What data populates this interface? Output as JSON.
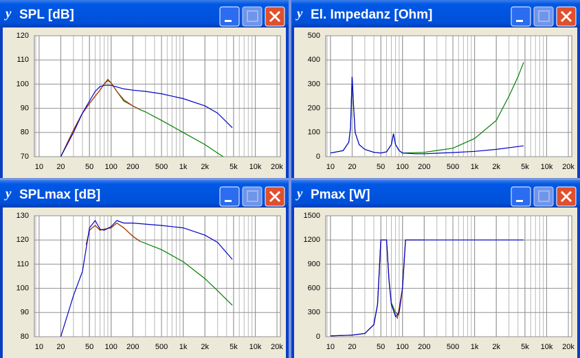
{
  "chart_data": [
    {
      "type": "line",
      "title": "SPL [dB]",
      "xscale": "log",
      "grid": true,
      "xlim": [
        8.6,
        22300
      ],
      "xticks": [
        10,
        20,
        50,
        100,
        200,
        500,
        {
          "value": 1000,
          "label": "1k"
        },
        {
          "value": 2000,
          "label": "2k"
        },
        {
          "value": 5000,
          "label": "5k"
        },
        {
          "value": 10000,
          "label": "10k"
        },
        {
          "value": 20000,
          "label": "20k"
        }
      ],
      "ylim": [
        70,
        120
      ],
      "yticks": [
        70,
        80,
        90,
        100,
        110,
        120
      ],
      "series": [
        {
          "color": "#008000",
          "x": [
            20,
            30,
            40,
            50,
            60,
            70,
            80,
            90,
            100,
            120,
            150,
            200,
            250,
            300,
            500,
            1000,
            2000,
            3000,
            3600
          ],
          "values": [
            70,
            81,
            88,
            92,
            95,
            97.5,
            100,
            101.5,
            100.5,
            97,
            93,
            91,
            89.5,
            88.5,
            85,
            80,
            75,
            71.5,
            70
          ]
        },
        {
          "color": "#b03000",
          "x": [
            20,
            30,
            40,
            50,
            60,
            70,
            80,
            90,
            100,
            120,
            150,
            200,
            250
          ],
          "values": [
            70,
            81,
            88,
            92,
            95,
            97.5,
            100,
            102,
            100.5,
            97,
            93.5,
            91,
            89.5
          ]
        },
        {
          "color": "#0000cc",
          "x": [
            20,
            30,
            40,
            50,
            60,
            70,
            80,
            100,
            150,
            200,
            300,
            500,
            1000,
            2000,
            3000,
            4800
          ],
          "values": [
            70,
            80,
            88,
            93,
            97,
            99,
            99.5,
            99.5,
            98,
            97.5,
            97,
            96,
            94,
            91,
            88,
            82
          ]
        }
      ]
    },
    {
      "type": "line",
      "title": "El. Impedanz [Ohm]",
      "xscale": "log",
      "grid": true,
      "xlim": [
        8.6,
        22300
      ],
      "xticks": [
        10,
        20,
        50,
        100,
        200,
        500,
        {
          "value": 1000,
          "label": "1k"
        },
        {
          "value": 2000,
          "label": "2k"
        },
        {
          "value": 5000,
          "label": "5k"
        },
        {
          "value": 10000,
          "label": "10k"
        },
        {
          "value": 20000,
          "label": "20k"
        }
      ],
      "ylim": [
        0,
        500
      ],
      "yticks": [
        0,
        100,
        200,
        300,
        400,
        500
      ],
      "series": [
        {
          "color": "#008000",
          "x": [
            10,
            15,
            18,
            19,
            20,
            21,
            22,
            25,
            30,
            40,
            50,
            60,
            70,
            75,
            80,
            90,
            100,
            200,
            500,
            1000,
            2000,
            3000,
            4000,
            4800
          ],
          "values": [
            15,
            25,
            60,
            120,
            330,
            200,
            100,
            50,
            30,
            18,
            15,
            20,
            50,
            95,
            50,
            25,
            15,
            18,
            35,
            75,
            150,
            250,
            330,
            390
          ]
        },
        {
          "color": "#0000cc",
          "x": [
            10,
            15,
            18,
            19,
            20,
            21,
            22,
            25,
            30,
            40,
            50,
            60,
            70,
            75,
            80,
            90,
            100,
            150,
            200,
            500,
            1000,
            2000,
            4800
          ],
          "values": [
            15,
            25,
            60,
            120,
            330,
            200,
            100,
            50,
            30,
            18,
            15,
            20,
            50,
            95,
            50,
            25,
            15,
            12,
            12,
            17,
            22,
            30,
            45
          ]
        }
      ]
    },
    {
      "type": "line",
      "title": "SPLmax [dB]",
      "xscale": "log",
      "grid": true,
      "xlim": [
        8.6,
        22300
      ],
      "xticks": [
        10,
        20,
        50,
        100,
        200,
        500,
        {
          "value": 1000,
          "label": "1k"
        },
        {
          "value": 2000,
          "label": "2k"
        },
        {
          "value": 5000,
          "label": "5k"
        },
        {
          "value": 10000,
          "label": "10k"
        },
        {
          "value": 20000,
          "label": "20k"
        }
      ],
      "ylim": [
        80,
        130
      ],
      "yticks": [
        80,
        90,
        100,
        110,
        120,
        130
      ],
      "series": [
        {
          "color": "#008000",
          "x": [
            45,
            50,
            60,
            70,
            80,
            100,
            120,
            150,
            200,
            250,
            500,
            1000,
            2000,
            3000,
            4800
          ],
          "values": [
            118,
            124,
            126,
            124,
            124.5,
            125,
            127,
            125,
            121.5,
            119.5,
            116,
            111,
            104,
            99,
            93
          ]
        },
        {
          "color": "#b03000",
          "x": [
            45,
            50,
            60,
            70,
            80,
            100,
            120,
            150,
            200,
            250
          ],
          "values": [
            118,
            124,
            126,
            124,
            124.5,
            125,
            127,
            125,
            121.5,
            119.5
          ]
        },
        {
          "color": "#0000cc",
          "x": [
            20,
            30,
            40,
            50,
            60,
            70,
            80,
            100,
            120,
            150,
            200,
            500,
            1000,
            2000,
            3000,
            4800
          ],
          "values": [
            80,
            97,
            107,
            125,
            128,
            124.5,
            124,
            125.5,
            128,
            127,
            127,
            126,
            125,
            122,
            119,
            112
          ]
        }
      ]
    },
    {
      "type": "line",
      "title": "Pmax [W]",
      "xscale": "log",
      "grid": true,
      "xlim": [
        8.6,
        22300
      ],
      "xticks": [
        10,
        20,
        50,
        100,
        200,
        500,
        {
          "value": 1000,
          "label": "1k"
        },
        {
          "value": 2000,
          "label": "2k"
        },
        {
          "value": 5000,
          "label": "5k"
        },
        {
          "value": 10000,
          "label": "10k"
        },
        {
          "value": 20000,
          "label": "20k"
        }
      ],
      "ylim": [
        0,
        1500
      ],
      "yticks": [
        0,
        300,
        600,
        900,
        1200,
        1500
      ],
      "series": [
        {
          "color": "#008000",
          "x": [
            10,
            20,
            30,
            40,
            45,
            50,
            60,
            65,
            70,
            80,
            88,
            100,
            110,
            200
          ],
          "values": [
            10,
            20,
            40,
            150,
            400,
            1200,
            1200,
            700,
            420,
            300,
            270,
            600,
            1200,
            1200
          ]
        },
        {
          "color": "#b03000",
          "x": [
            10,
            20,
            30,
            40,
            45,
            50,
            60,
            65,
            70,
            80,
            85,
            100,
            110,
            200
          ],
          "values": [
            10,
            20,
            40,
            150,
            400,
            1200,
            1200,
            700,
            400,
            260,
            230,
            600,
            1200,
            1200
          ]
        },
        {
          "color": "#0000cc",
          "x": [
            10,
            20,
            30,
            40,
            45,
            50,
            60,
            65,
            70,
            80,
            90,
            100,
            110,
            200,
            4800
          ],
          "values": [
            10,
            20,
            40,
            150,
            400,
            1200,
            1200,
            700,
            400,
            250,
            300,
            600,
            1200,
            1200,
            1200
          ]
        }
      ]
    }
  ]
}
